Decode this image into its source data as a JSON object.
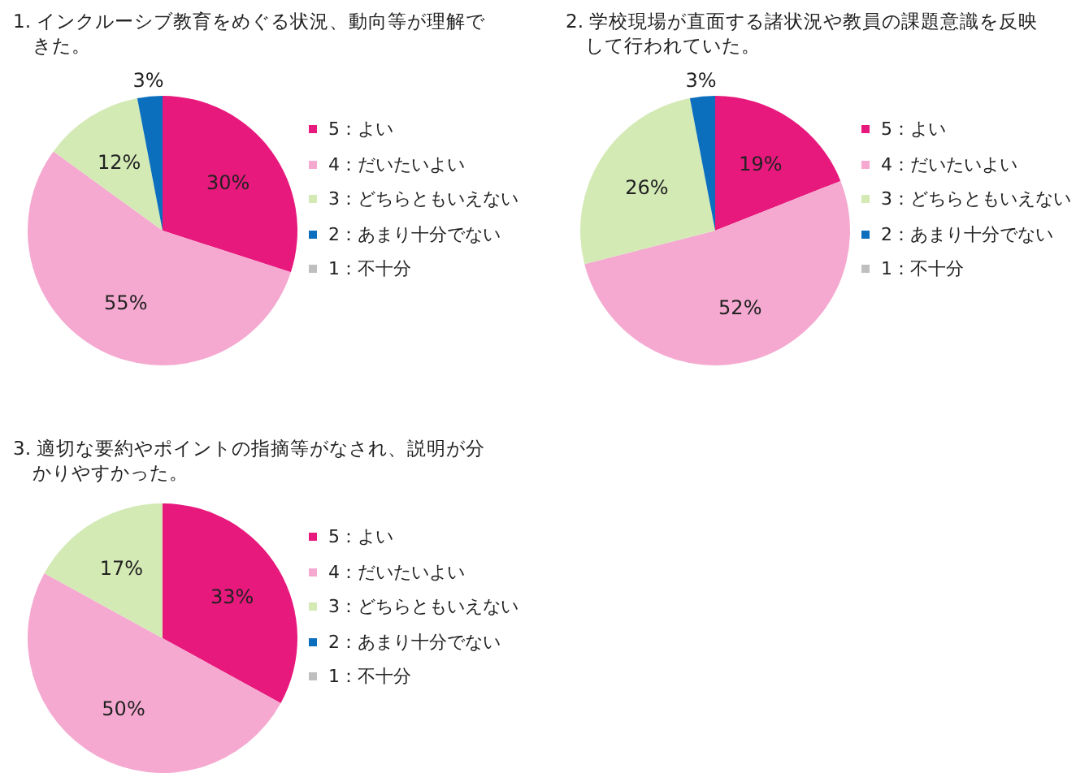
{
  "chart_data": [
    {
      "type": "pie",
      "title": "1. インクルーシブ教育をめぐる状況、動向等が理解できた。",
      "categories": [
        "5：よい",
        "4：だいたいよい",
        "3：どちらともいえない",
        "2：あまり十分でない",
        "1：不十分"
      ],
      "values": [
        30,
        55,
        12,
        3,
        0
      ],
      "colors": [
        "#e8197d",
        "#f5a9d0",
        "#d3eab5",
        "#0b6fbd",
        "#bfbfbf"
      ],
      "value_labels": [
        "30%",
        "55%",
        "12%",
        "3%",
        null
      ],
      "legend": "right"
    },
    {
      "type": "pie",
      "title": "2. 学校現場が直面する諸状況や教員の課題意識を反映して行われていた。",
      "categories": [
        "5：よい",
        "4：だいたいよい",
        "3：どちらともいえない",
        "2：あまり十分でない",
        "1：不十分"
      ],
      "values": [
        19,
        52,
        26,
        3,
        0
      ],
      "colors": [
        "#e8197d",
        "#f5a9d0",
        "#d3eab5",
        "#0b6fbd",
        "#bfbfbf"
      ],
      "value_labels": [
        "19%",
        "52%",
        "26%",
        "3%",
        null
      ],
      "legend": "right"
    },
    {
      "type": "pie",
      "title": "3. 適切な要約やポイントの指摘等がなされ、説明が分かりやすかった。",
      "categories": [
        "5：よい",
        "4：だいたいよい",
        "3：どちらともいえない",
        "2：あまり十分でない",
        "1：不十分"
      ],
      "values": [
        33,
        50,
        17,
        0,
        0
      ],
      "colors": [
        "#e8197d",
        "#f5a9d0",
        "#d3eab5",
        "#0b6fbd",
        "#bfbfbf"
      ],
      "value_labels": [
        "33%",
        "50%",
        "17%",
        null,
        null
      ],
      "legend": "right"
    }
  ]
}
